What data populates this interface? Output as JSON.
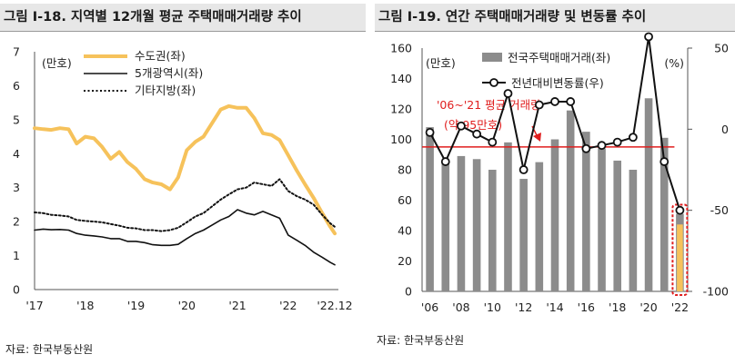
{
  "charts": [
    {
      "heading": "그림 Ⅰ-18. 지역별 12개월 평균 주택매매거래량 추이",
      "unit": "(만호)",
      "source": "자료: 한국부동산원",
      "legend": [
        "수도권(좌)",
        "5개광역시(좌)",
        "기타지방(좌)"
      ]
    },
    {
      "heading": "그림 Ⅰ-19. 연간 주택매매거래량 및 변동률 추이",
      "unit_left": "(만호)",
      "unit_right": "(%)",
      "source": "자료: 한국부동산원",
      "legend": [
        "전국주택매매거래(좌)",
        "전년대비변동률(우)"
      ],
      "annotation": [
        "'06~'21 평균 거래량",
        "(약 95만호)"
      ]
    }
  ],
  "colors": {
    "capital": "#f6c25b",
    "metro": "#111111",
    "other": "#111111",
    "bar": "#8c8c8c",
    "line": "#111111",
    "avg": "#e01e1e",
    "highlight": "#f6c25b"
  },
  "chart_data": [
    {
      "type": "line",
      "title": "지역별 12개월 평균 주택매매거래량 추이",
      "ylabel": "(만호)",
      "ylim": [
        0,
        7
      ],
      "yticks": [
        "0",
        "1",
        "2",
        "3",
        "4",
        "5",
        "6",
        "7"
      ],
      "xlim": [
        2017.0,
        2022.917
      ],
      "xticks": [
        {
          "label": "'17",
          "x": 2017.0
        },
        {
          "label": "'18",
          "x": 2018.0
        },
        {
          "label": "'19",
          "x": 2019.0
        },
        {
          "label": "'20",
          "x": 2020.0
        },
        {
          "label": "'21",
          "x": 2021.0
        },
        {
          "label": "'22",
          "x": 2022.0
        },
        {
          "label": "'22.12",
          "x": 2022.917
        }
      ],
      "series": [
        {
          "name": "수도권(좌)",
          "style": "solid-thick",
          "color": "#f6c25b",
          "x": [
            2017.0,
            2017.17,
            2017.33,
            2017.5,
            2017.67,
            2017.83,
            2018.0,
            2018.17,
            2018.33,
            2018.5,
            2018.67,
            2018.83,
            2019.0,
            2019.17,
            2019.33,
            2019.5,
            2019.67,
            2019.83,
            2020.0,
            2020.17,
            2020.33,
            2020.5,
            2020.67,
            2020.83,
            2021.0,
            2021.17,
            2021.33,
            2021.5,
            2021.67,
            2021.83,
            2022.0,
            2022.17,
            2022.33,
            2022.5,
            2022.67,
            2022.83,
            2022.917
          ],
          "values": [
            4.75,
            4.72,
            4.7,
            4.75,
            4.72,
            4.3,
            4.5,
            4.45,
            4.2,
            3.85,
            4.05,
            3.75,
            3.55,
            3.25,
            3.15,
            3.1,
            2.95,
            3.3,
            4.1,
            4.35,
            4.5,
            4.9,
            5.3,
            5.4,
            5.35,
            5.35,
            5.05,
            4.6,
            4.55,
            4.4,
            3.95,
            3.5,
            3.1,
            2.7,
            2.25,
            1.85,
            1.65
          ]
        },
        {
          "name": "5개광역시(좌)",
          "style": "solid",
          "color": "#111111",
          "x": [
            2017.0,
            2017.17,
            2017.33,
            2017.5,
            2017.67,
            2017.83,
            2018.0,
            2018.17,
            2018.33,
            2018.5,
            2018.67,
            2018.83,
            2019.0,
            2019.17,
            2019.33,
            2019.5,
            2019.67,
            2019.83,
            2020.0,
            2020.17,
            2020.33,
            2020.5,
            2020.67,
            2020.83,
            2021.0,
            2021.17,
            2021.33,
            2021.5,
            2021.67,
            2021.83,
            2022.0,
            2022.17,
            2022.33,
            2022.5,
            2022.67,
            2022.83,
            2022.917
          ],
          "values": [
            1.75,
            1.78,
            1.76,
            1.77,
            1.75,
            1.65,
            1.6,
            1.58,
            1.55,
            1.5,
            1.5,
            1.42,
            1.42,
            1.38,
            1.32,
            1.3,
            1.3,
            1.33,
            1.5,
            1.65,
            1.75,
            1.9,
            2.05,
            2.15,
            2.35,
            2.25,
            2.2,
            2.3,
            2.2,
            2.1,
            1.6,
            1.45,
            1.3,
            1.1,
            0.95,
            0.8,
            0.73
          ]
        },
        {
          "name": "기타지방(좌)",
          "style": "dotted",
          "color": "#111111",
          "x": [
            2017.0,
            2017.17,
            2017.33,
            2017.5,
            2017.67,
            2017.83,
            2018.0,
            2018.17,
            2018.33,
            2018.5,
            2018.67,
            2018.83,
            2019.0,
            2019.17,
            2019.33,
            2019.5,
            2019.67,
            2019.83,
            2020.0,
            2020.17,
            2020.33,
            2020.5,
            2020.67,
            2020.83,
            2021.0,
            2021.17,
            2021.33,
            2021.5,
            2021.67,
            2021.83,
            2022.0,
            2022.17,
            2022.33,
            2022.5,
            2022.67,
            2022.83,
            2022.917
          ],
          "values": [
            2.27,
            2.25,
            2.2,
            2.18,
            2.15,
            2.05,
            2.02,
            2.0,
            1.98,
            1.93,
            1.88,
            1.82,
            1.8,
            1.75,
            1.75,
            1.72,
            1.75,
            1.82,
            1.98,
            2.15,
            2.25,
            2.45,
            2.65,
            2.8,
            2.95,
            3.0,
            3.15,
            3.1,
            3.05,
            3.25,
            2.9,
            2.75,
            2.65,
            2.5,
            2.2,
            1.95,
            1.85
          ]
        }
      ]
    },
    {
      "type": "bar",
      "title": "연간 주택매매거래량 및 변동률 추이",
      "categories": [
        "2006",
        "2007",
        "2008",
        "2009",
        "2010",
        "2011",
        "2012",
        "2013",
        "2014",
        "2015",
        "2016",
        "2017",
        "2018",
        "2019",
        "2020",
        "2021",
        "2022"
      ],
      "xticks": [
        "'06",
        "'08",
        "'10",
        "'12",
        "'14",
        "'16",
        "'18",
        "'20",
        "'22"
      ],
      "ylabel": "(만호)",
      "ylim": [
        0,
        160
      ],
      "yticks": [
        "0",
        "20",
        "40",
        "60",
        "80",
        "100",
        "120",
        "140",
        "160"
      ],
      "y2label": "(%)",
      "y2lim": [
        -100,
        50
      ],
      "y2ticks": [
        "-100",
        "-50",
        "0",
        "50"
      ],
      "reference_line": 95,
      "series": [
        {
          "name": "전국주택매매거래(좌)",
          "kind": "bar",
          "axis": "left",
          "color": "#8c8c8c",
          "values": [
            108,
            86,
            89,
            87,
            80,
            98,
            74,
            85,
            100,
            119,
            105,
            94,
            86,
            80,
            127,
            101,
            51
          ]
        },
        {
          "name": "전년대비변동률(우)",
          "kind": "line-marker",
          "axis": "right",
          "color": "#111111",
          "values": [
            -2,
            -20,
            2,
            -3,
            -8,
            22,
            -25,
            15,
            17,
            17,
            -12,
            -10,
            -8,
            -5,
            57,
            -20,
            -50
          ]
        }
      ]
    }
  ]
}
